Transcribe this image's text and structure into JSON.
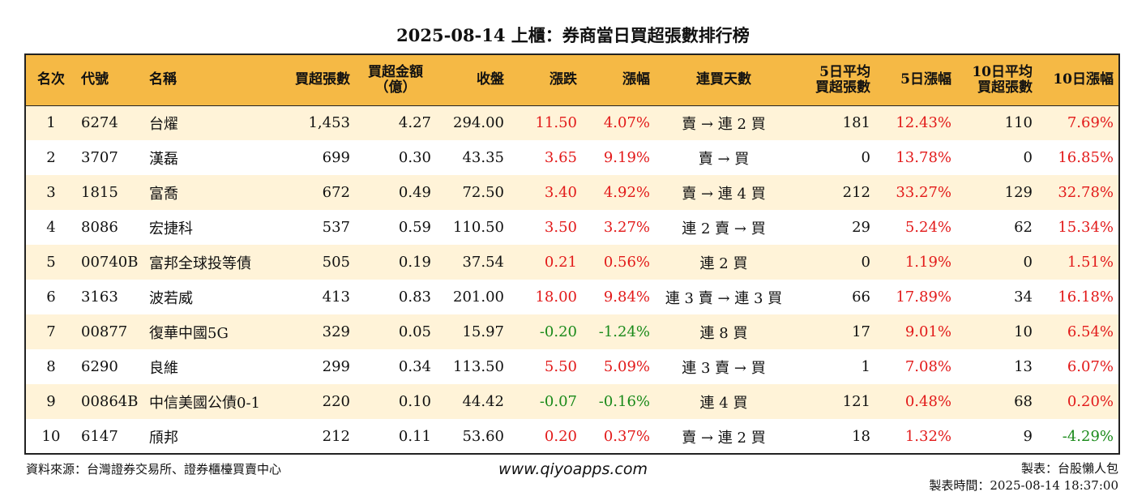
{
  "title": "2025-08-14 上櫃：券商當日買超張數排行榜",
  "headers": {
    "rank": "名次",
    "code": "代號",
    "name": "名稱",
    "buy_lots": "買超張數",
    "amount_1": "買超金額",
    "amount_2": "（億）",
    "close": "收盤",
    "change": "漲跌",
    "pct": "漲幅",
    "streak": "連買天數",
    "avg5_1": "5日平均",
    "avg5_2": "買超張數",
    "pct5": "5日漲幅",
    "avg10_1": "10日平均",
    "avg10_2": "買超張數",
    "pct10": "10日漲幅"
  },
  "colors": {
    "header_bg": "#f5b945",
    "odd_row_bg": "#fff3d8",
    "up": "#e21a1a",
    "down": "#1a8a1a"
  },
  "rows": [
    {
      "rank": "1",
      "code": "6274",
      "name": "台燿",
      "buy": "1,453",
      "amt": "4.27",
      "close": "294.00",
      "chg": "11.50",
      "pct": "4.07%",
      "streak": "賣 → 連 2 買",
      "avg5": "181",
      "pct5": "12.43%",
      "avg10": "110",
      "pct10": "7.69%"
    },
    {
      "rank": "2",
      "code": "3707",
      "name": "漢磊",
      "buy": "699",
      "amt": "0.30",
      "close": "43.35",
      "chg": "3.65",
      "pct": "9.19%",
      "streak": "賣 → 買",
      "avg5": "0",
      "pct5": "13.78%",
      "avg10": "0",
      "pct10": "16.85%"
    },
    {
      "rank": "3",
      "code": "1815",
      "name": "富喬",
      "buy": "672",
      "amt": "0.49",
      "close": "72.50",
      "chg": "3.40",
      "pct": "4.92%",
      "streak": "賣 → 連 4 買",
      "avg5": "212",
      "pct5": "33.27%",
      "avg10": "129",
      "pct10": "32.78%"
    },
    {
      "rank": "4",
      "code": "8086",
      "name": "宏捷科",
      "buy": "537",
      "amt": "0.59",
      "close": "110.50",
      "chg": "3.50",
      "pct": "3.27%",
      "streak": "連 2 賣 → 買",
      "avg5": "29",
      "pct5": "5.24%",
      "avg10": "62",
      "pct10": "15.34%"
    },
    {
      "rank": "5",
      "code": "00740B",
      "name": "富邦全球投等債",
      "buy": "505",
      "amt": "0.19",
      "close": "37.54",
      "chg": "0.21",
      "pct": "0.56%",
      "streak": "連 2 買",
      "avg5": "0",
      "pct5": "1.19%",
      "avg10": "0",
      "pct10": "1.51%"
    },
    {
      "rank": "6",
      "code": "3163",
      "name": "波若威",
      "buy": "413",
      "amt": "0.83",
      "close": "201.00",
      "chg": "18.00",
      "pct": "9.84%",
      "streak": "連 3 賣 → 連 3 買",
      "avg5": "66",
      "pct5": "17.89%",
      "avg10": "34",
      "pct10": "16.18%"
    },
    {
      "rank": "7",
      "code": "00877",
      "name": "復華中國5G",
      "buy": "329",
      "amt": "0.05",
      "close": "15.97",
      "chg": "-0.20",
      "pct": "-1.24%",
      "streak": "連 8 買",
      "avg5": "17",
      "pct5": "9.01%",
      "avg10": "10",
      "pct10": "6.54%"
    },
    {
      "rank": "8",
      "code": "6290",
      "name": "良維",
      "buy": "299",
      "amt": "0.34",
      "close": "113.50",
      "chg": "5.50",
      "pct": "5.09%",
      "streak": "連 3 賣 → 買",
      "avg5": "1",
      "pct5": "7.08%",
      "avg10": "13",
      "pct10": "6.07%"
    },
    {
      "rank": "9",
      "code": "00864B",
      "name": "中信美國公債0-1",
      "buy": "220",
      "amt": "0.10",
      "close": "44.42",
      "chg": "-0.07",
      "pct": "-0.16%",
      "streak": "連 4 買",
      "avg5": "121",
      "pct5": "0.48%",
      "avg10": "68",
      "pct10": "0.20%"
    },
    {
      "rank": "10",
      "code": "6147",
      "name": "頎邦",
      "buy": "212",
      "amt": "0.11",
      "close": "53.60",
      "chg": "0.20",
      "pct": "0.37%",
      "streak": "賣 → 連 2 買",
      "avg5": "18",
      "pct5": "1.32%",
      "avg10": "9",
      "pct10": "-4.29%"
    }
  ],
  "footer": {
    "source": "資料來源：台灣證券交易所、證券櫃檯買賣中心",
    "website": "www.qiyoapps.com",
    "maker": "製表：台股懶人包",
    "made_time": "製表時間：2025-08-14 18:37:00"
  }
}
